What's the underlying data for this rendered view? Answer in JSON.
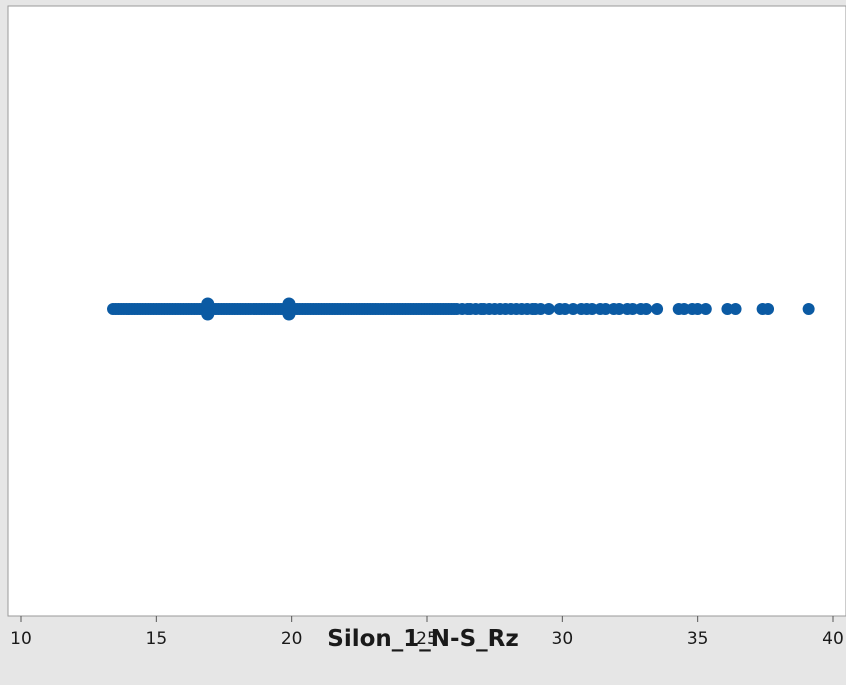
{
  "chart_data": {
    "type": "scatter",
    "title": "",
    "xlabel": "Silon_1_N-S_Rz",
    "ylabel": "",
    "xlim": [
      10,
      40
    ],
    "x_ticks": [
      10,
      15,
      20,
      25,
      30,
      35,
      40
    ],
    "x_tick_labels": [
      "10",
      "15",
      "20",
      "25",
      "30",
      "35",
      "40"
    ],
    "grid": false,
    "legend": "none",
    "marker_color": "#0b5aa3",
    "background_color": "#ffffff",
    "frame_color": "#e6e6e6",
    "series": [
      {
        "values": [
          13.4,
          13.5,
          13.6,
          13.7,
          13.8,
          13.9,
          14.0,
          14.1,
          14.2,
          14.3,
          14.4,
          14.5,
          14.6,
          14.7,
          14.8,
          14.9,
          15.0,
          15.1,
          15.2,
          15.3,
          15.4,
          15.5,
          15.6,
          15.7,
          15.8,
          15.9,
          16.0,
          16.1,
          16.2,
          16.3,
          16.4,
          16.5,
          16.6,
          16.7,
          16.8,
          16.9,
          17.0,
          17.1,
          17.2,
          17.3,
          17.4,
          17.5,
          17.6,
          17.7,
          17.8,
          17.9,
          18.0,
          18.1,
          18.2,
          18.3,
          18.4,
          18.5,
          18.6,
          18.7,
          18.8,
          18.9,
          19.0,
          19.1,
          19.2,
          19.3,
          19.4,
          19.5,
          19.6,
          19.7,
          19.8,
          19.9,
          20.0,
          20.1,
          20.2,
          20.3,
          20.4,
          20.5,
          20.6,
          20.7,
          20.8,
          20.9,
          21.0,
          21.1,
          21.2,
          21.3,
          21.4,
          21.5,
          21.6,
          21.7,
          21.8,
          21.9,
          22.0,
          22.1,
          22.2,
          22.3,
          22.4,
          22.5,
          22.6,
          22.7,
          22.8,
          22.9,
          23.0,
          23.1,
          23.2,
          23.3,
          23.4,
          23.5,
          23.6,
          23.7,
          23.8,
          23.9,
          24.0,
          24.1,
          24.2,
          24.3,
          24.4,
          24.5,
          24.6,
          24.7,
          24.8,
          24.9,
          25.0,
          25.1,
          25.2,
          25.3,
          25.4,
          25.5,
          25.6,
          25.7,
          25.8,
          25.9,
          26.0,
          26.1,
          26.3,
          26.5,
          26.6,
          26.8,
          27.0,
          27.1,
          27.3,
          27.5,
          27.7,
          27.9,
          28.1,
          28.3,
          28.5,
          28.7,
          28.9,
          29.0,
          29.2,
          29.5,
          29.9,
          30.1,
          30.4,
          30.7,
          30.9,
          31.1,
          31.4,
          31.6,
          31.9,
          32.1,
          32.4,
          32.6,
          32.9,
          33.1,
          33.5,
          34.3,
          34.5,
          34.8,
          35.0,
          35.3,
          36.1,
          36.4,
          37.4,
          37.6,
          39.1
        ],
        "y": 0,
        "dense_clusters": [
          16.9,
          19.9
        ]
      }
    ]
  }
}
